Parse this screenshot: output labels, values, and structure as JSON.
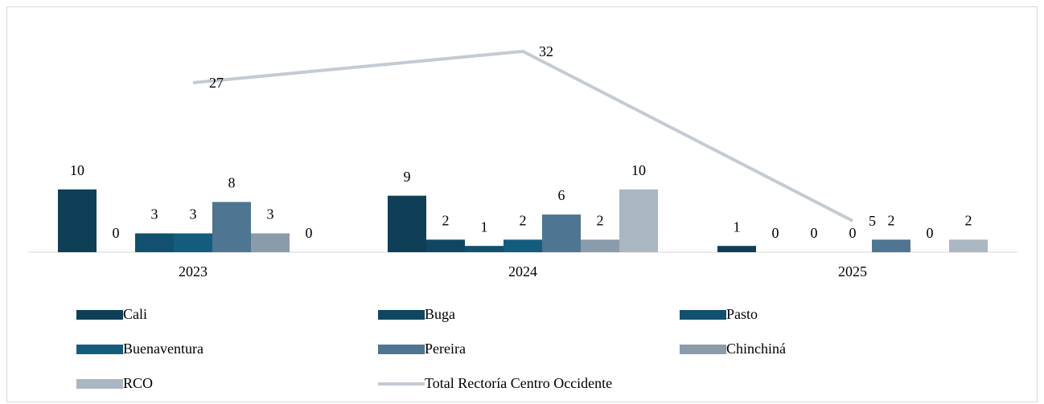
{
  "chart_data": {
    "type": "bar",
    "categories": [
      "2023",
      "2024",
      "2025"
    ],
    "series": [
      {
        "name": "Cali",
        "color": "#0e3f57",
        "values": [
          10,
          9,
          1
        ]
      },
      {
        "name": "Buga",
        "color": "#0f4763",
        "values": [
          0,
          2,
          0
        ]
      },
      {
        "name": "Pasto",
        "color": "#11506e",
        "values": [
          3,
          1,
          0
        ]
      },
      {
        "name": "Buenaventura",
        "color": "#145c7e",
        "values": [
          3,
          2,
          0
        ]
      },
      {
        "name": "Pereira",
        "color": "#4e7591",
        "values": [
          8,
          6,
          2
        ]
      },
      {
        "name": "Chinchiná",
        "color": "#8a9bab",
        "values": [
          3,
          2,
          0
        ]
      },
      {
        "name": "RCO",
        "color": "#aab6c2",
        "values": [
          0,
          10,
          2
        ]
      },
      {
        "name": "Total Rectoría Centro Occidente",
        "color": "#c5cbd3",
        "type": "line",
        "values": [
          27,
          32,
          5
        ]
      }
    ],
    "ylim": [
      0,
      38
    ],
    "legend": "bottom"
  }
}
